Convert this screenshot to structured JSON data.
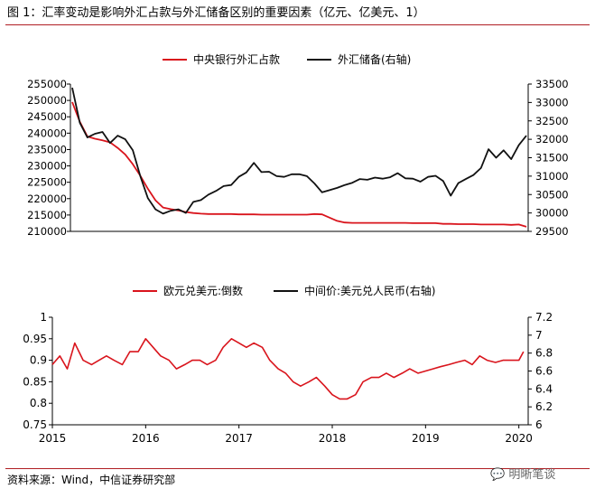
{
  "figure": {
    "title": "图 1：汇率变动是影响外汇占款与外汇储备区别的重要因素（亿元、亿美元、1）",
    "source": "资料来源：Wind，中信证券研究部",
    "watermark": "明晰笔谈",
    "accent_color": "#b01e23"
  },
  "chart_data": [
    {
      "type": "line",
      "legend_position": "top-center",
      "grid": false,
      "x_range": [
        0,
        60
      ],
      "y_left": {
        "ticks": [
          "255000",
          "250000",
          "245000",
          "240000",
          "235000",
          "230000",
          "225000",
          "220000",
          "215000",
          "210000"
        ],
        "range": [
          210000,
          255000
        ]
      },
      "y_right": {
        "ticks": [
          "33500",
          "33000",
          "32500",
          "32000",
          "31500",
          "31000",
          "30500",
          "30000",
          "29500"
        ],
        "range": [
          29500,
          33500
        ]
      },
      "series": [
        {
          "name": "中央银行外汇占款",
          "axis": "left",
          "color": "#d9141c",
          "values": [
            249500,
            243500,
            239000,
            238300,
            237800,
            237200,
            235500,
            233500,
            230500,
            227000,
            223000,
            219500,
            217300,
            216800,
            216400,
            215900,
            215600,
            215400,
            215300,
            215300,
            215300,
            215300,
            215200,
            215200,
            215200,
            215100,
            215100,
            215100,
            215100,
            215100,
            215100,
            215100,
            215300,
            215200,
            214200,
            213200,
            212700,
            212600,
            212600,
            212600,
            212600,
            212600,
            212600,
            212600,
            212600,
            212500,
            212500,
            212500,
            212500,
            212300,
            212300,
            212200,
            212200,
            212200,
            212100,
            212100,
            212100,
            212100,
            212000,
            212100,
            211400
          ]
        },
        {
          "name": "外汇储备(右轴)",
          "axis": "right",
          "color": "#111111",
          "values": [
            33400,
            32450,
            32050,
            32150,
            32200,
            31900,
            32100,
            32000,
            31700,
            31000,
            30400,
            30100,
            29980,
            30060,
            30100,
            30000,
            30300,
            30350,
            30500,
            30600,
            30730,
            30760,
            30980,
            31100,
            31360,
            31110,
            31120,
            31000,
            30980,
            31050,
            31050,
            31000,
            30800,
            30560,
            30620,
            30680,
            30760,
            30820,
            30920,
            30900,
            30960,
            30930,
            30970,
            31080,
            30940,
            30930,
            30850,
            30980,
            31010,
            30870,
            30470,
            30810,
            30920,
            31030,
            31220,
            31730,
            31500,
            31700,
            31460,
            31840,
            32100
          ]
        }
      ]
    },
    {
      "type": "line",
      "legend_position": "top-center",
      "grid": false,
      "x_ticks": [
        "2015",
        "2016",
        "2017",
        "2018",
        "2019",
        "2020"
      ],
      "x_range": [
        2015,
        2020.1
      ],
      "y_left": {
        "ticks": [
          "1",
          "0.95",
          "0.9",
          "0.85",
          "0.8",
          "0.75"
        ],
        "range": [
          0.75,
          1.0
        ]
      },
      "y_right": {
        "ticks": [
          "7.2",
          "7",
          "6.8",
          "6.6",
          "6.4",
          "6.2",
          "6"
        ],
        "range": [
          6.0,
          7.2
        ]
      },
      "series": [
        {
          "name": "欧元兑美元:倒数",
          "axis": "left",
          "color": "#d9141c",
          "x": [
            2015,
            2015.08,
            2015.16,
            2015.24,
            2015.33,
            2015.42,
            2015.5,
            2015.58,
            2015.66,
            2015.75,
            2015.83,
            2015.92,
            2016,
            2016.08,
            2016.16,
            2016.25,
            2016.33,
            2016.42,
            2016.5,
            2016.58,
            2016.66,
            2016.75,
            2016.83,
            2016.92,
            2017,
            2017.08,
            2017.16,
            2017.25,
            2017.33,
            2017.42,
            2017.5,
            2017.58,
            2017.66,
            2017.75,
            2017.83,
            2017.92,
            2018,
            2018.08,
            2018.16,
            2018.25,
            2018.33,
            2018.42,
            2018.5,
            2018.58,
            2018.66,
            2018.75,
            2018.83,
            2018.92,
            2019,
            2019.08,
            2019.16,
            2019.25,
            2019.33,
            2019.42,
            2019.5,
            2019.58,
            2019.66,
            2019.75,
            2019.83,
            2019.92,
            2020,
            2020.05
          ],
          "values": [
            0.89,
            0.91,
            0.88,
            0.94,
            0.9,
            0.89,
            0.9,
            0.91,
            0.9,
            0.89,
            0.92,
            0.92,
            0.95,
            0.93,
            0.91,
            0.9,
            0.88,
            0.89,
            0.9,
            0.9,
            0.89,
            0.9,
            0.93,
            0.95,
            0.94,
            0.93,
            0.94,
            0.93,
            0.9,
            0.88,
            0.87,
            0.85,
            0.84,
            0.85,
            0.86,
            0.84,
            0.82,
            0.81,
            0.81,
            0.82,
            0.85,
            0.86,
            0.86,
            0.87,
            0.86,
            0.87,
            0.88,
            0.87,
            0.875,
            0.88,
            0.885,
            0.89,
            0.895,
            0.9,
            0.89,
            0.91,
            0.9,
            0.895,
            0.9,
            0.9,
            0.9,
            0.92
          ]
        }
      ]
    }
  ]
}
